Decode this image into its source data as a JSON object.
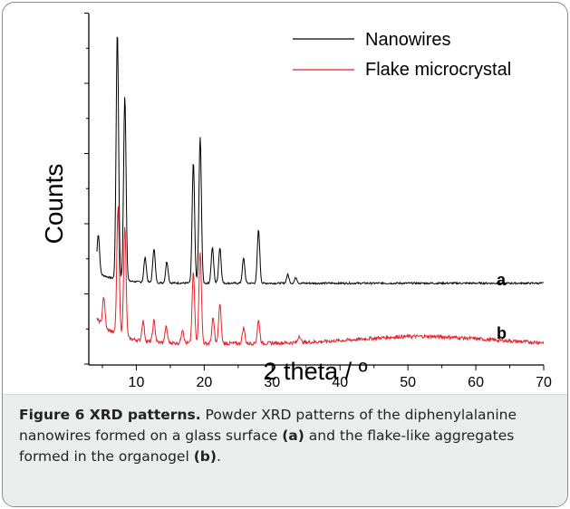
{
  "chart_data": {
    "type": "line",
    "xlabel": "2 theta / º",
    "ylabel": "Counts",
    "xlim": [
      3,
      70
    ],
    "x_ticks": [
      10,
      20,
      30,
      40,
      50,
      60,
      70
    ],
    "y_tick_labels_shown": false,
    "grid": false,
    "legend_position": "top-right",
    "series": [
      {
        "name": "Nanowires",
        "label": "a",
        "color": "#000000",
        "baseline": 1.0,
        "peaks": [
          [
            4.4,
            0.55
          ],
          [
            7.2,
            3.5
          ],
          [
            8.3,
            2.6
          ],
          [
            11.3,
            0.35
          ],
          [
            12.6,
            0.48
          ],
          [
            14.5,
            0.3
          ],
          [
            18.4,
            1.7
          ],
          [
            19.4,
            2.05
          ],
          [
            21.2,
            0.5
          ],
          [
            22.3,
            0.5
          ],
          [
            25.8,
            0.35
          ],
          [
            28.0,
            0.75
          ],
          [
            32.3,
            0.12
          ],
          [
            33.5,
            0.08
          ]
        ]
      },
      {
        "name": "Flake microcrystal",
        "label": "b",
        "color": "#e8202a",
        "baseline": 0.15,
        "peaks": [
          [
            5.2,
            0.4
          ],
          [
            7.3,
            1.8
          ],
          [
            8.3,
            1.55
          ],
          [
            11.0,
            0.28
          ],
          [
            12.6,
            0.3
          ],
          [
            14.4,
            0.22
          ],
          [
            16.8,
            0.2
          ],
          [
            18.4,
            1.0
          ],
          [
            19.4,
            1.3
          ],
          [
            21.3,
            0.35
          ],
          [
            22.3,
            0.55
          ],
          [
            25.8,
            0.22
          ],
          [
            28.0,
            0.32
          ],
          [
            34.0,
            0.1
          ]
        ],
        "broad_hump": [
          52,
          0.1
        ]
      }
    ]
  },
  "caption": {
    "bold": "Figure 6 XRD patterns.",
    "text_1": " Powder XRD patterns of the diphenylalanine nanowires formed on a glass surface ",
    "ref_a": "(a)",
    "text_2": " and the flake-like aggregates formed in the organogel ",
    "ref_b": "(b)",
    "text_3": "."
  }
}
